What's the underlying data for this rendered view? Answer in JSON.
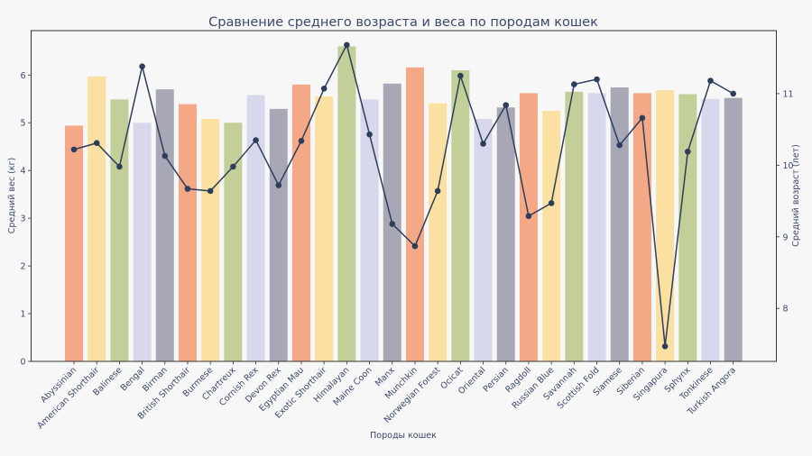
{
  "chart_data": {
    "type": "bar",
    "title": "Сравнение среднего возраста и веса по породам кошек",
    "xlabel": "Породы кошек",
    "ylabel": "Средний вес (кг)",
    "y2label": "Средний возраст (лет)",
    "ylim": [
      0,
      6.93
    ],
    "y2lim": [
      7.26,
      11.88
    ],
    "yticks": [
      "0",
      "1",
      "2",
      "3",
      "4",
      "5",
      "6"
    ],
    "y2ticks": [
      "8",
      "9",
      "10",
      "11"
    ],
    "grid": false,
    "categories": [
      "Abyssinian",
      "American Shorthair",
      "Balinese",
      "Bengal",
      "Birman",
      "British Shorthair",
      "Burmese",
      "Chartreux",
      "Cornish Rex",
      "Devon Rex",
      "Egyptian Mau",
      "Exotic Shorthair",
      "Himalayan",
      "Maine Coon",
      "Manx",
      "Munchkin",
      "Norwegian Forest",
      "Ocicat",
      "Oriental",
      "Persian",
      "Ragdoll",
      "Russian Blue",
      "Savannah",
      "Scottish Fold",
      "Siamese",
      "Siberian",
      "Singapura",
      "Sphynx",
      "Tonkinese",
      "Turkish Angora"
    ],
    "series": [
      {
        "name": "Средний вес (кг)",
        "type": "bar",
        "axis": "left",
        "values": [
          4.94,
          5.97,
          5.49,
          5.0,
          5.7,
          5.39,
          5.08,
          5.0,
          5.58,
          5.29,
          5.8,
          5.55,
          6.6,
          5.49,
          5.82,
          6.16,
          5.41,
          6.1,
          5.08,
          5.32,
          5.62,
          5.25,
          5.65,
          5.62,
          5.74,
          5.62,
          5.68,
          5.6,
          5.5,
          5.52
        ]
      },
      {
        "name": "Средний возраст (лет)",
        "type": "line",
        "axis": "right",
        "values": [
          10.22,
          10.31,
          9.98,
          11.38,
          10.13,
          9.67,
          9.64,
          9.98,
          10.35,
          9.72,
          10.34,
          11.07,
          11.68,
          10.43,
          9.18,
          8.87,
          9.64,
          11.25,
          10.3,
          10.84,
          9.29,
          9.47,
          11.13,
          11.2,
          10.28,
          10.66,
          7.47,
          10.19,
          11.18,
          11.0
        ]
      }
    ],
    "colors": {
      "bars": [
        "#f4a886",
        "#fce0a2",
        "#c3cf98",
        "#d8d8ec",
        "#a8a7b5"
      ],
      "line": "#2c3e5c",
      "text": "#3b4a6b",
      "background": "#f7f7f7"
    }
  }
}
